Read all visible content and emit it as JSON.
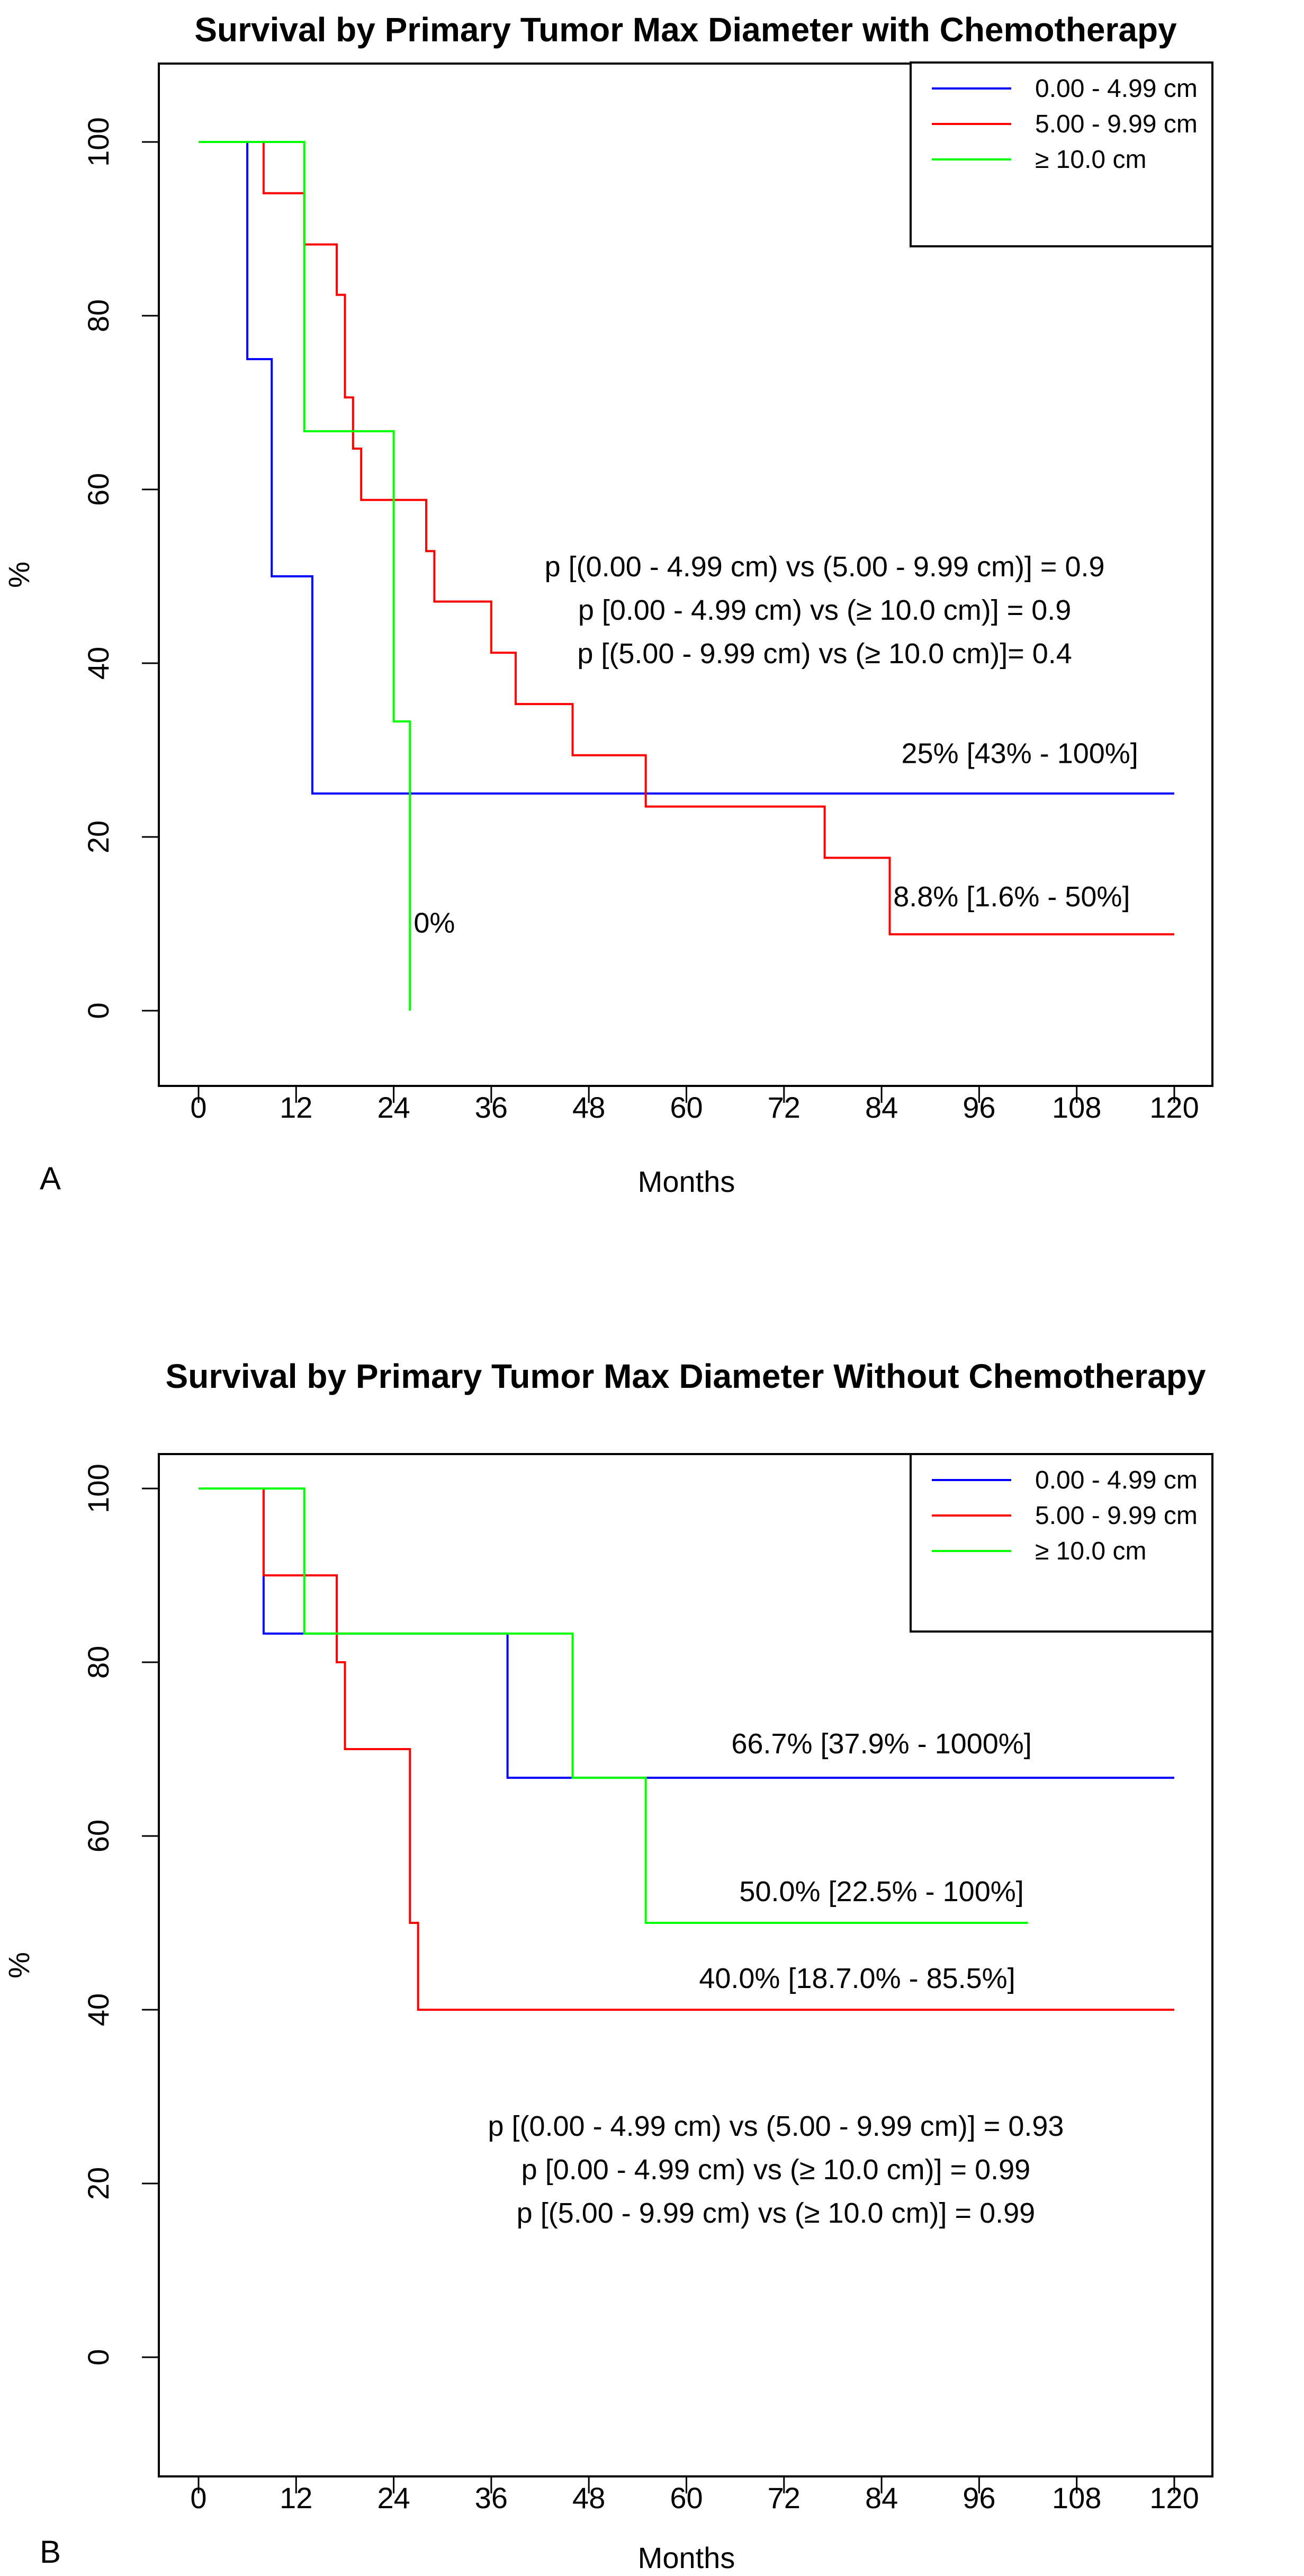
{
  "chart_data": [
    {
      "type": "line",
      "panel_label": "A",
      "title": "Survival by Primary Tumor Max Diameter with Chemotherapy",
      "xlabel": "Months",
      "ylabel": "%",
      "xlim": [
        0,
        120
      ],
      "ylim": [
        0,
        100
      ],
      "x_ticks": [
        "0",
        "12",
        "24",
        "36",
        "48",
        "60",
        "72",
        "84",
        "96",
        "108",
        "120"
      ],
      "y_ticks": [
        "0",
        "20",
        "40",
        "60",
        "80",
        "100"
      ],
      "legend_position": "top-right",
      "series": [
        {
          "name": "0.00 - 4.99 cm",
          "color": "#0000ff",
          "x": [
            0,
            6,
            6,
            9,
            9,
            14,
            14,
            120
          ],
          "y": [
            100,
            100,
            75,
            75,
            50,
            50,
            25,
            25
          ]
        },
        {
          "name": "5.00 - 9.99 cm",
          "color": "#ff0000",
          "x": [
            8,
            8,
            13,
            13,
            17,
            17,
            18,
            18,
            19,
            19,
            20,
            20,
            28,
            28,
            29,
            29,
            36,
            36,
            39,
            39,
            46,
            46,
            55,
            55,
            77,
            77,
            85,
            85,
            120
          ],
          "y": [
            100,
            94.1,
            94.1,
            88.2,
            88.2,
            82.4,
            82.4,
            70.6,
            70.6,
            64.7,
            64.7,
            58.8,
            58.8,
            52.9,
            52.9,
            47.1,
            47.1,
            41.2,
            41.2,
            35.3,
            35.3,
            29.4,
            29.4,
            23.5,
            23.5,
            17.6,
            17.6,
            8.8,
            8.8
          ]
        },
        {
          "name": "≥ 10.0 cm",
          "color": "#00ff00",
          "x": [
            0,
            13,
            13,
            24,
            24,
            26,
            26
          ],
          "y": [
            100,
            100,
            66.7,
            66.7,
            33.3,
            33.3,
            0
          ]
        }
      ],
      "annotations": [
        {
          "text": "p [(0.00 - 4.99 cm) vs (5.00 - 9.99 cm)] = 0.9",
          "x": 77,
          "y": 50
        },
        {
          "text": "p [0.00 - 4.99 cm) vs (≥ 10.0 cm)] = 0.9",
          "x": 77,
          "y": 45
        },
        {
          "text": "p [(5.00 - 9.99 cm) vs (≥ 10.0 cm)]= 0.4",
          "x": 77,
          "y": 40
        },
        {
          "text": "25% [43% - 100%]",
          "x": 101,
          "y": 28.5
        },
        {
          "text": "8.8% [1.6% - 50%]",
          "x": 100,
          "y": 12
        },
        {
          "text": "0%",
          "x": 29,
          "y": 9
        }
      ]
    },
    {
      "type": "line",
      "panel_label": "B",
      "title": "Survival by Primary Tumor Max Diameter Without Chemotherapy",
      "xlabel": "Months",
      "ylabel": "%",
      "xlim": [
        0,
        120
      ],
      "ylim": [
        0,
        100
      ],
      "x_ticks": [
        "0",
        "12",
        "24",
        "36",
        "48",
        "60",
        "72",
        "84",
        "96",
        "108",
        "120"
      ],
      "y_ticks": [
        "0",
        "20",
        "40",
        "60",
        "80",
        "100"
      ],
      "legend_position": "top-right",
      "series": [
        {
          "name": "0.00 - 4.99 cm",
          "color": "#0000ff",
          "x": [
            0,
            8,
            8,
            38,
            38,
            120
          ],
          "y": [
            100,
            100,
            83.3,
            83.3,
            66.7,
            66.7
          ]
        },
        {
          "name": "5.00 - 9.99 cm",
          "color": "#ff0000",
          "x": [
            8,
            8,
            17,
            17,
            18,
            18,
            26,
            26,
            27,
            27,
            120
          ],
          "y": [
            100,
            90,
            90,
            80,
            80,
            70,
            70,
            50,
            50,
            40,
            40
          ]
        },
        {
          "name": "≥ 10.0 cm",
          "color": "#00ff00",
          "x": [
            0,
            13,
            13,
            46,
            46,
            55,
            55,
            102
          ],
          "y": [
            100,
            100,
            83.3,
            83.3,
            66.7,
            66.7,
            50,
            50
          ]
        }
      ],
      "annotations": [
        {
          "text": "66.7% [37.9% - 1000%]",
          "x": 84,
          "y": 69.5
        },
        {
          "text": "50.0% [22.5% - 100%]",
          "x": 84,
          "y": 52.5
        },
        {
          "text": "40.0% [18.7.0% - 85.5%]",
          "x": 81,
          "y": 42.5
        },
        {
          "text": "p [(0.00 - 4.99 cm) vs (5.00 - 9.99 cm)] = 0.93",
          "x": 71,
          "y": 25.5
        },
        {
          "text": "p [0.00 - 4.99 cm) vs (≥ 10.0 cm)] = 0.99",
          "x": 71,
          "y": 20.5
        },
        {
          "text": "p [(5.00 - 9.99 cm) vs (≥ 10.0 cm)] = 0.99",
          "x": 71,
          "y": 15.5
        }
      ]
    }
  ]
}
